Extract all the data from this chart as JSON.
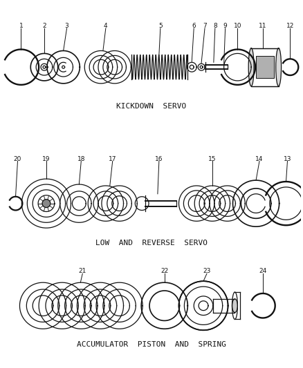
{
  "background_color": "#ffffff",
  "line_color": "#111111",
  "section_labels": {
    "kickdown": "KICKDOWN  SERVO",
    "low_reverse": "LOW  AND  REVERSE  SERVO",
    "accumulator": "ACCUMULATOR  PISTON  AND  SPRING"
  }
}
